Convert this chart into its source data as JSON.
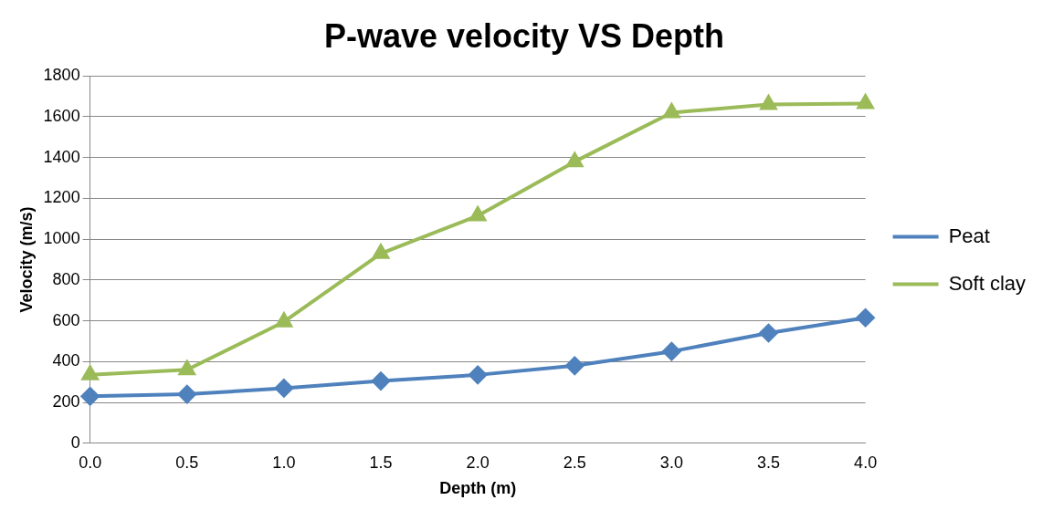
{
  "chart_data": {
    "type": "line",
    "title": "P-wave velocity VS Depth",
    "xlabel": "Depth (m)",
    "ylabel": "Velocity (m/s)",
    "categories": [
      "0.0",
      "0.5",
      "1.0",
      "1.5",
      "2.0",
      "2.5",
      "3.0",
      "3.5",
      "4.0"
    ],
    "series": [
      {
        "name": "Peat",
        "color": "#4f81bd",
        "marker": "diamond",
        "values": [
          230,
          240,
          270,
          305,
          335,
          380,
          450,
          540,
          615
        ]
      },
      {
        "name": "Soft clay",
        "color": "#9bbb59",
        "marker": "triangle",
        "values": [
          335,
          360,
          595,
          930,
          1115,
          1380,
          1620,
          1660,
          1665
        ]
      }
    ],
    "ylim": [
      0,
      1800
    ],
    "yticks": [
      0,
      200,
      400,
      600,
      800,
      1000,
      1200,
      1400,
      1600,
      1800
    ],
    "grid": "y",
    "legend": "right",
    "line_style": "solid"
  }
}
